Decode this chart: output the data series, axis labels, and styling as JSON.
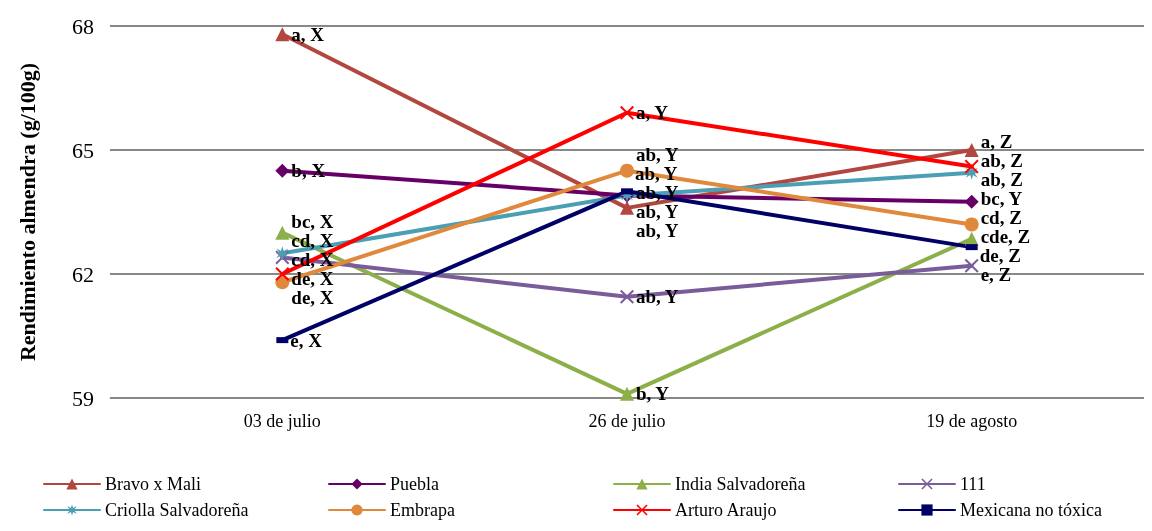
{
  "chart_data": {
    "type": "line",
    "ylabel": "Rendimiento almendra (g/100g)",
    "categories": [
      "03 de julio",
      "26 de julio",
      "19 de agosto"
    ],
    "ylim": [
      59,
      68
    ],
    "yticks": [
      59,
      62,
      65,
      68
    ],
    "grid": "y",
    "legend": "bottom",
    "series": [
      {
        "name": "Bravo x Mali",
        "color": "#b2473f",
        "marker": "triangle",
        "values": [
          67.8,
          63.6,
          65.0
        ],
        "value_labels": [
          "a, X",
          "ab, Y",
          "a, Z"
        ]
      },
      {
        "name": "Puebla",
        "color": "#660066",
        "marker": "diamond",
        "values": [
          64.5,
          63.9,
          63.75
        ],
        "value_labels": [
          "b, X",
          "ab, Y",
          "bc, Y"
        ]
      },
      {
        "name": "India Salvadoreña",
        "color": "#8caf4a",
        "marker": "triangle",
        "values": [
          63.0,
          59.1,
          62.85
        ],
        "value_labels": [
          "bc, X",
          "b, Y",
          "cde, Z"
        ]
      },
      {
        "name": "111",
        "color": "#7a5c9a",
        "marker": "cross",
        "values": [
          62.4,
          61.45,
          62.2
        ],
        "value_labels": [
          "cd, X",
          "ab, Y",
          "e, Z"
        ]
      },
      {
        "name": "Criolla Salvadoreña",
        "color": "#4a9fb5",
        "marker": "star",
        "values": [
          62.5,
          63.9,
          64.45
        ],
        "value_labels": [
          "cd, X",
          "ab, Y",
          "ab, Z"
        ]
      },
      {
        "name": "Embrapa",
        "color": "#e0883c",
        "marker": "circle",
        "values": [
          61.8,
          64.5,
          63.2
        ],
        "value_labels": [
          "de, X",
          "ab, Y",
          "cd, Z"
        ]
      },
      {
        "name": "Arturo Araujo",
        "color": "#ff0000",
        "marker": "cross",
        "values": [
          62.0,
          65.9,
          64.6
        ],
        "value_labels": [
          "de, X",
          "a, Y",
          "ab, Z"
        ]
      },
      {
        "name": "Mexicana no tóxica",
        "color": "#000066",
        "marker": "square",
        "values": [
          60.4,
          64.0,
          62.65
        ],
        "value_labels": [
          "e, X",
          "ab, Y",
          "de, Z"
        ]
      }
    ]
  }
}
